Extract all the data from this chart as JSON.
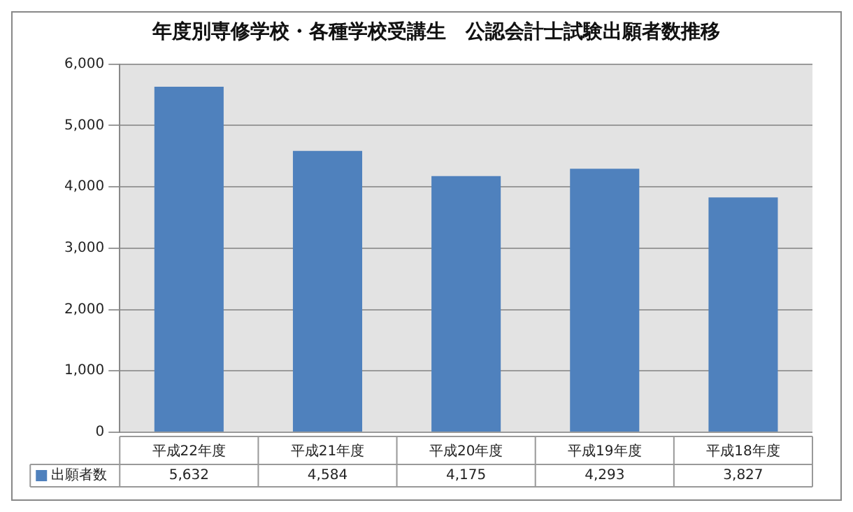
{
  "chart_data": {
    "type": "bar",
    "title": "年度別専修学校・各種学校受講生　公認会計士試験出願者数推移",
    "categories": [
      "平成22年度",
      "平成21年度",
      "平成20年度",
      "平成19年度",
      "平成18年度"
    ],
    "series": [
      {
        "name": "出願者数",
        "color": "#4f81bd",
        "values": [
          5632,
          4584,
          4175,
          4293,
          3827
        ],
        "value_labels": [
          "5,632",
          "4,584",
          "4,175",
          "4,293",
          "3,827"
        ]
      }
    ],
    "ylim": [
      0,
      6000
    ],
    "yticks": [
      {
        "value": 0,
        "label": "0"
      },
      {
        "value": 1000,
        "label": "1,000"
      },
      {
        "value": 2000,
        "label": "2,000"
      },
      {
        "value": 3000,
        "label": "3,000"
      },
      {
        "value": 4000,
        "label": "4,000"
      },
      {
        "value": 5000,
        "label": "5,000"
      },
      {
        "value": 6000,
        "label": "6,000"
      }
    ],
    "grid": "y",
    "legend": "bottom"
  }
}
